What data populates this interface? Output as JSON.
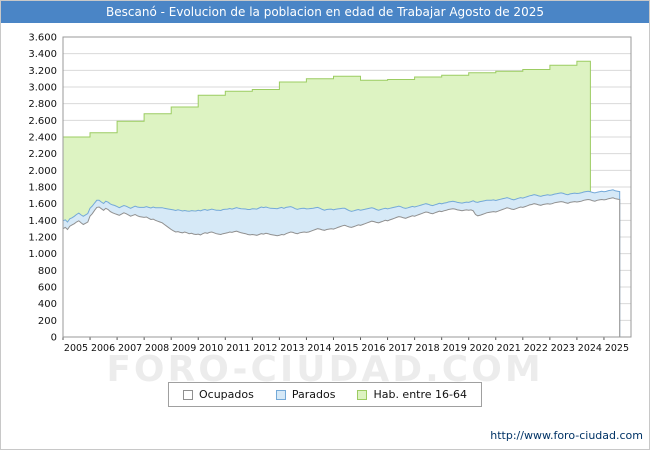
{
  "title": "Bescanó - Evolucion de la poblacion en edad de Trabajar Agosto de 2025",
  "watermark": "FORO-CIUDAD.COM",
  "footer": {
    "url": "http://www.foro-ciudad.com"
  },
  "colors": {
    "title_bar": "#4a85c6",
    "hab_fill": "#ddf3c2",
    "hab_stroke": "#9ccc62",
    "par_fill": "#d6e9f7",
    "par_stroke": "#74a9d8",
    "ocu_fill": "#ffffff",
    "ocu_stroke": "#909090",
    "grid": "#d9d9d9",
    "border": "#999999",
    "url_color": "#003366"
  },
  "chart_data": {
    "type": "area",
    "title": "Bescanó - Evolucion de la poblacion en edad de Trabajar Agosto de 2025",
    "legend": [
      "Ocupados",
      "Parados",
      "Hab. entre 16-64"
    ],
    "ylim": [
      0,
      3600
    ],
    "y_tick_step": 200,
    "y_tick_labels": [
      "0",
      "200",
      "400",
      "600",
      "800",
      "1.000",
      "1.200",
      "1.400",
      "1.600",
      "1.800",
      "2.000",
      "2.200",
      "2.400",
      "2.600",
      "2.800",
      "3.000",
      "3.200",
      "3.400",
      "3.600"
    ],
    "x_domain": [
      2005,
      2026
    ],
    "x_tick_years": [
      2005,
      2006,
      2007,
      2008,
      2009,
      2010,
      2011,
      2012,
      2013,
      2014,
      2015,
      2016,
      2017,
      2018,
      2019,
      2020,
      2021,
      2022,
      2023,
      2024,
      2025
    ],
    "hab_by_year": {
      "2005": 2400,
      "2006": 2450,
      "2007": 2590,
      "2008": 2680,
      "2009": 2760,
      "2010": 2900,
      "2011": 2950,
      "2012": 2970,
      "2013": 3060,
      "2014": 3100,
      "2015": 3130,
      "2016": 3080,
      "2017": 3090,
      "2018": 3120,
      "2019": 3140,
      "2020": 3170,
      "2021": 3190,
      "2022": 3210,
      "2023": 3260,
      "2024": 3310
    },
    "hab_end": {
      "year": 2024,
      "month": 6
    },
    "ocupados_monthly": {
      "2005": [
        1300,
        1315,
        1290,
        1330,
        1345,
        1360,
        1380,
        1395,
        1370,
        1350,
        1365,
        1380
      ],
      "2006": [
        1450,
        1480,
        1520,
        1555,
        1560,
        1540,
        1520,
        1545,
        1530,
        1505,
        1490,
        1480
      ],
      "2007": [
        1470,
        1460,
        1475,
        1490,
        1480,
        1465,
        1450,
        1460,
        1470,
        1455,
        1445,
        1440
      ],
      "2008": [
        1435,
        1440,
        1425,
        1410,
        1415,
        1400,
        1390,
        1380,
        1370,
        1350,
        1330,
        1310
      ],
      "2009": [
        1290,
        1275,
        1260,
        1265,
        1255,
        1250,
        1260,
        1250,
        1240,
        1245,
        1235,
        1230
      ],
      "2010": [
        1235,
        1225,
        1240,
        1250,
        1245,
        1255,
        1260,
        1250,
        1240,
        1235,
        1230,
        1240
      ],
      "2011": [
        1245,
        1250,
        1260,
        1255,
        1265,
        1270,
        1260,
        1250,
        1245,
        1240,
        1230,
        1225
      ],
      "2012": [
        1230,
        1225,
        1220,
        1230,
        1240,
        1235,
        1245,
        1240,
        1230,
        1225,
        1220,
        1215
      ],
      "2013": [
        1220,
        1230,
        1225,
        1240,
        1250,
        1260,
        1255,
        1245,
        1240,
        1250,
        1255,
        1260
      ],
      "2014": [
        1255,
        1260,
        1270,
        1280,
        1290,
        1300,
        1295,
        1285,
        1280,
        1290,
        1295,
        1300
      ],
      "2015": [
        1295,
        1305,
        1315,
        1325,
        1335,
        1340,
        1330,
        1320,
        1315,
        1325,
        1335,
        1345
      ],
      "2016": [
        1340,
        1350,
        1360,
        1370,
        1380,
        1390,
        1385,
        1375,
        1370,
        1380,
        1390,
        1400
      ],
      "2017": [
        1395,
        1405,
        1415,
        1425,
        1435,
        1445,
        1440,
        1430,
        1425,
        1435,
        1445,
        1455
      ],
      "2018": [
        1450,
        1460,
        1470,
        1480,
        1490,
        1500,
        1495,
        1485,
        1480,
        1490,
        1500,
        1510
      ],
      "2019": [
        1505,
        1515,
        1520,
        1530,
        1535,
        1540,
        1535,
        1525,
        1520,
        1515,
        1520,
        1525
      ],
      "2020": [
        1520,
        1525,
        1515,
        1470,
        1455,
        1460,
        1470,
        1480,
        1490,
        1495,
        1500,
        1505
      ],
      "2021": [
        1500,
        1510,
        1520,
        1530,
        1540,
        1550,
        1545,
        1535,
        1530,
        1540,
        1550,
        1560
      ],
      "2022": [
        1555,
        1565,
        1575,
        1585,
        1590,
        1600,
        1595,
        1585,
        1580,
        1590,
        1595,
        1600
      ],
      "2023": [
        1595,
        1600,
        1610,
        1615,
        1620,
        1625,
        1620,
        1610,
        1605,
        1615,
        1620,
        1625
      ],
      "2024": [
        1620,
        1625,
        1630,
        1640,
        1645,
        1650,
        1645,
        1635,
        1630,
        1640,
        1645,
        1650
      ],
      "2025": [
        1645,
        1650,
        1660,
        1665,
        1670,
        1660,
        1655,
        1650
      ]
    },
    "parados_monthly": {
      "2005": [
        95,
        92,
        90,
        88,
        85,
        88,
        90,
        92,
        95,
        98,
        100,
        102
      ],
      "2006": [
        95,
        92,
        88,
        85,
        82,
        80,
        82,
        85,
        88,
        92,
        95,
        98
      ],
      "2007": [
        95,
        92,
        90,
        88,
        90,
        92,
        95,
        98,
        100,
        105,
        110,
        115
      ],
      "2008": [
        120,
        125,
        130,
        138,
        145,
        152,
        160,
        170,
        182,
        195,
        210,
        225
      ],
      "2009": [
        240,
        250,
        258,
        262,
        265,
        262,
        258,
        262,
        268,
        272,
        278,
        282
      ],
      "2010": [
        285,
        288,
        284,
        280,
        276,
        272,
        275,
        278,
        282,
        285,
        288,
        290
      ],
      "2011": [
        288,
        285,
        282,
        280,
        278,
        282,
        285,
        288,
        292,
        296,
        300,
        305
      ],
      "2012": [
        308,
        312,
        315,
        318,
        320,
        318,
        315,
        312,
        315,
        318,
        322,
        325
      ],
      "2013": [
        328,
        325,
        320,
        315,
        310,
        305,
        300,
        295,
        292,
        290,
        288,
        285
      ],
      "2014": [
        282,
        278,
        272,
        266,
        260,
        255,
        250,
        246,
        242,
        240,
        238,
        235
      ],
      "2015": [
        232,
        228,
        222,
        216,
        210,
        205,
        200,
        196,
        192,
        190,
        188,
        185
      ],
      "2016": [
        182,
        178,
        172,
        168,
        164,
        160,
        158,
        155,
        152,
        150,
        148,
        145
      ],
      "2017": [
        142,
        140,
        136,
        132,
        128,
        125,
        122,
        120,
        118,
        116,
        114,
        112
      ],
      "2018": [
        110,
        108,
        106,
        104,
        102,
        100,
        99,
        98,
        97,
        96,
        95,
        94
      ],
      "2019": [
        93,
        92,
        91,
        90,
        90,
        89,
        89,
        90,
        91,
        92,
        93,
        94
      ],
      "2020": [
        95,
        100,
        120,
        150,
        160,
        165,
        160,
        155,
        150,
        145,
        142,
        140
      ],
      "2021": [
        138,
        135,
        132,
        128,
        125,
        122,
        120,
        118,
        116,
        115,
        114,
        113
      ],
      "2022": [
        112,
        111,
        110,
        110,
        109,
        109,
        108,
        108,
        107,
        107,
        106,
        106
      ],
      "2023": [
        106,
        105,
        105,
        104,
        104,
        104,
        103,
        103,
        103,
        102,
        102,
        102
      ],
      "2024": [
        102,
        101,
        101,
        100,
        100,
        100,
        99,
        99,
        99,
        98,
        98,
        98
      ],
      "2025": [
        98,
        97,
        97,
        96,
        96,
        95,
        95,
        95
      ]
    }
  }
}
